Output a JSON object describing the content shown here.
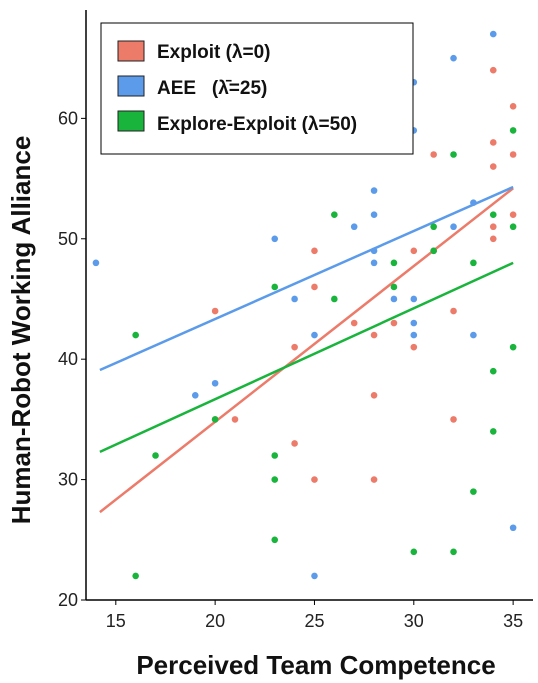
{
  "chart_data": {
    "type": "scatter",
    "xlabel": "Perceived Team Competence",
    "ylabel": "Human-Robot Working Alliance",
    "xlim": [
      13.5,
      36
    ],
    "ylim": [
      20,
      69
    ],
    "xticks": [
      15,
      20,
      25,
      30,
      35
    ],
    "yticks": [
      20,
      30,
      40,
      50,
      60
    ],
    "grid": false,
    "legend_position": "top-left",
    "colors": {
      "exploit": "#ec7b6a",
      "aee": "#5b9bea",
      "explore_exploit": "#19b43c"
    },
    "series": [
      {
        "name": "Exploit (λ=0)",
        "color": "#ec7b6a",
        "points": [
          [
            20,
            44
          ],
          [
            20,
            35
          ],
          [
            21,
            35
          ],
          [
            24,
            41
          ],
          [
            24,
            33
          ],
          [
            25,
            49
          ],
          [
            25,
            46
          ],
          [
            25,
            30
          ],
          [
            26,
            58
          ],
          [
            27,
            43
          ],
          [
            28,
            42
          ],
          [
            28,
            37
          ],
          [
            28,
            30
          ],
          [
            29,
            43
          ],
          [
            30,
            49
          ],
          [
            30,
            41
          ],
          [
            31,
            57
          ],
          [
            31,
            49
          ],
          [
            32,
            44
          ],
          [
            32,
            35
          ],
          [
            34,
            64
          ],
          [
            34,
            58
          ],
          [
            34,
            56
          ],
          [
            34,
            51
          ],
          [
            34,
            50
          ],
          [
            35,
            61
          ],
          [
            35,
            57
          ],
          [
            35,
            52
          ]
        ],
        "fit": [
          [
            14.2,
            27.3
          ],
          [
            35,
            54.2
          ]
        ]
      },
      {
        "name": "AEE   (λ̄=25)",
        "color": "#5b9bea",
        "points": [
          [
            14,
            48
          ],
          [
            19,
            37
          ],
          [
            20,
            38
          ],
          [
            23,
            50
          ],
          [
            24,
            45
          ],
          [
            25,
            42
          ],
          [
            25,
            22
          ],
          [
            27,
            51
          ],
          [
            28,
            62
          ],
          [
            28,
            54
          ],
          [
            28,
            52
          ],
          [
            28,
            49
          ],
          [
            28,
            48
          ],
          [
            29,
            64
          ],
          [
            29,
            45
          ],
          [
            30,
            63
          ],
          [
            30,
            59
          ],
          [
            30,
            45
          ],
          [
            30,
            43
          ],
          [
            30,
            42
          ],
          [
            32,
            65
          ],
          [
            32,
            51
          ],
          [
            33,
            53
          ],
          [
            33,
            42
          ],
          [
            34,
            67
          ],
          [
            35,
            26
          ]
        ],
        "fit": [
          [
            14.2,
            39.1
          ],
          [
            35,
            54.3
          ]
        ]
      },
      {
        "name": "Explore-Exploit (λ=50)",
        "color": "#19b43c",
        "points": [
          [
            16,
            42
          ],
          [
            16,
            22
          ],
          [
            17,
            32
          ],
          [
            20,
            35
          ],
          [
            23,
            46
          ],
          [
            23,
            32
          ],
          [
            23,
            30
          ],
          [
            23,
            25
          ],
          [
            25,
            67
          ],
          [
            26,
            52
          ],
          [
            26,
            45
          ],
          [
            29,
            48
          ],
          [
            29,
            46
          ],
          [
            30,
            24
          ],
          [
            31,
            51
          ],
          [
            31,
            49
          ],
          [
            32,
            57
          ],
          [
            32,
            24
          ],
          [
            33,
            48
          ],
          [
            33,
            29
          ],
          [
            34,
            52
          ],
          [
            34,
            39
          ],
          [
            34,
            34
          ],
          [
            35,
            59
          ],
          [
            35,
            51
          ],
          [
            35,
            41
          ]
        ],
        "fit": [
          [
            14.2,
            32.3
          ],
          [
            35,
            48
          ]
        ]
      }
    ]
  }
}
